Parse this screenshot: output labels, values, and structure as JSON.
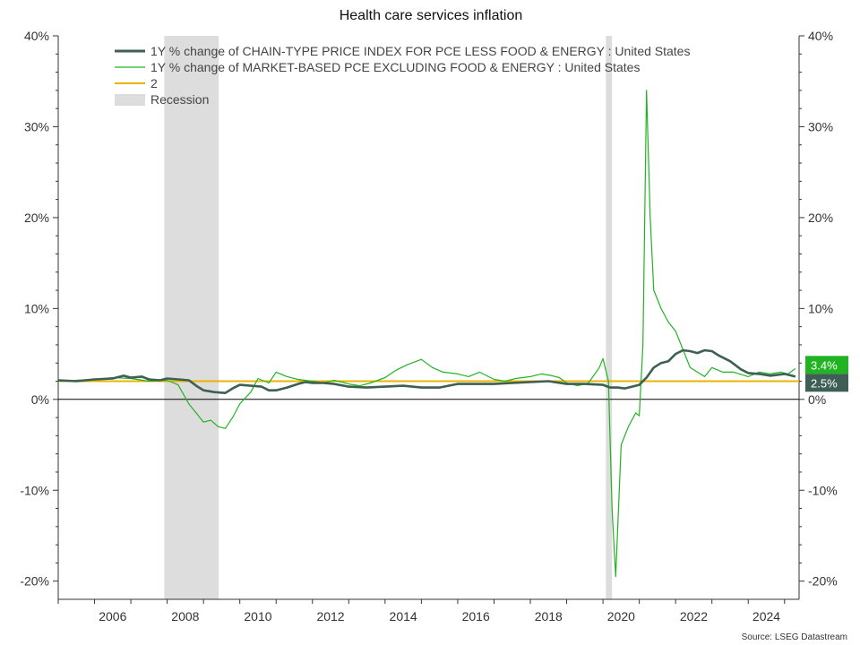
{
  "chart_data": {
    "type": "line",
    "title": "Health care services inflation",
    "source": "Source: LSEG Datastream",
    "xlim": [
      2005.0,
      2025.4
    ],
    "ylim": [
      -22,
      40
    ],
    "y_ticks": [
      -20,
      -10,
      0,
      10,
      20,
      30,
      40
    ],
    "y_tick_labels": [
      "-20%",
      "-10%",
      "0%",
      "10%",
      "20%",
      "30%",
      "40%"
    ],
    "x_ticks": [
      2006,
      2008,
      2010,
      2012,
      2014,
      2016,
      2018,
      2020,
      2022,
      2024
    ],
    "x_tick_labels": [
      "2006",
      "2008",
      "2010",
      "2012",
      "2014",
      "2016",
      "2018",
      "2020",
      "2022",
      "2024"
    ],
    "legend_position": "top-left",
    "recession_label": "Recession",
    "recessions": [
      [
        2007.92,
        2009.42
      ],
      [
        2020.08,
        2020.25
      ]
    ],
    "reference_line": {
      "name": "2",
      "value": 2,
      "color": "#e8b400"
    },
    "end_labels": [
      {
        "text": "3.4%",
        "value": 3.4,
        "color": "#22b322"
      },
      {
        "text": "2.5%",
        "value": 2.5,
        "color": "#3d5f55"
      }
    ],
    "series": [
      {
        "name": "1Y % change of CHAIN-TYPE PRICE INDEX FOR PCE LESS FOOD & ENERGY : United States",
        "color": "#3d5f55",
        "x": [
          2005.0,
          2005.5,
          2006.0,
          2006.5,
          2006.8,
          2007.0,
          2007.3,
          2007.5,
          2007.8,
          2008.0,
          2008.3,
          2008.6,
          2008.8,
          2009.0,
          2009.3,
          2009.6,
          2009.8,
          2010.0,
          2010.3,
          2010.6,
          2010.8,
          2011.0,
          2011.3,
          2011.6,
          2011.8,
          2012.0,
          2012.3,
          2012.6,
          2013.0,
          2013.5,
          2014.0,
          2014.5,
          2015.0,
          2015.5,
          2016.0,
          2016.5,
          2017.0,
          2017.5,
          2018.0,
          2018.5,
          2019.0,
          2019.5,
          2020.0,
          2020.2,
          2020.4,
          2020.6,
          2020.8,
          2021.0,
          2021.2,
          2021.4,
          2021.6,
          2021.8,
          2022.0,
          2022.2,
          2022.4,
          2022.6,
          2022.8,
          2023.0,
          2023.2,
          2023.5,
          2023.8,
          2024.0,
          2024.3,
          2024.6,
          2024.8,
          2025.0,
          2025.2,
          2025.3
        ],
        "values": [
          2.1,
          2.0,
          2.2,
          2.3,
          2.6,
          2.4,
          2.5,
          2.2,
          2.1,
          2.3,
          2.2,
          2.1,
          1.5,
          1.0,
          0.8,
          0.7,
          1.2,
          1.6,
          1.5,
          1.4,
          1.0,
          1.0,
          1.3,
          1.7,
          1.9,
          1.8,
          1.8,
          1.7,
          1.4,
          1.3,
          1.4,
          1.5,
          1.3,
          1.3,
          1.7,
          1.7,
          1.7,
          1.8,
          1.9,
          2.0,
          1.7,
          1.7,
          1.6,
          1.3,
          1.3,
          1.2,
          1.4,
          1.6,
          2.4,
          3.5,
          4.0,
          4.2,
          5.0,
          5.4,
          5.3,
          5.1,
          5.4,
          5.3,
          4.8,
          4.2,
          3.3,
          2.9,
          2.8,
          2.6,
          2.7,
          2.8,
          2.6,
          2.5
        ]
      },
      {
        "name": "1Y % change of MARKET-BASED PCE EXCLUDING FOOD & ENERGY : United States",
        "color": "#22b322",
        "x": [
          2005.0,
          2005.5,
          2006.0,
          2006.5,
          2007.0,
          2007.5,
          2008.0,
          2008.3,
          2008.6,
          2008.8,
          2009.0,
          2009.2,
          2009.4,
          2009.6,
          2009.8,
          2010.0,
          2010.3,
          2010.5,
          2010.8,
          2011.0,
          2011.3,
          2011.6,
          2012.0,
          2012.3,
          2012.6,
          2013.0,
          2013.3,
          2013.6,
          2014.0,
          2014.3,
          2014.6,
          2015.0,
          2015.3,
          2015.6,
          2016.0,
          2016.3,
          2016.6,
          2017.0,
          2017.3,
          2017.6,
          2018.0,
          2018.3,
          2018.6,
          2018.8,
          2019.0,
          2019.3,
          2019.6,
          2019.9,
          2020.0,
          2020.15,
          2020.25,
          2020.35,
          2020.5,
          2020.7,
          2020.9,
          2021.0,
          2021.1,
          2021.2,
          2021.3,
          2021.4,
          2021.6,
          2021.8,
          2022.0,
          2022.2,
          2022.4,
          2022.6,
          2022.8,
          2023.0,
          2023.3,
          2023.6,
          2024.0,
          2024.3,
          2024.6,
          2024.9,
          2025.1,
          2025.3
        ],
        "values": [
          2.0,
          2.1,
          2.2,
          2.4,
          2.3,
          2.0,
          2.1,
          1.6,
          -0.5,
          -1.5,
          -2.5,
          -2.3,
          -3.0,
          -3.2,
          -2.0,
          -0.5,
          0.8,
          2.3,
          1.8,
          3.0,
          2.5,
          2.2,
          2.0,
          1.8,
          2.1,
          1.7,
          1.5,
          1.8,
          2.4,
          3.2,
          3.8,
          4.4,
          3.5,
          3.0,
          2.8,
          2.5,
          3.0,
          2.2,
          2.0,
          2.3,
          2.5,
          2.8,
          2.6,
          2.4,
          1.8,
          1.5,
          1.8,
          3.5,
          4.5,
          2.0,
          -12.0,
          -19.5,
          -5.0,
          -3.0,
          -1.5,
          -1.8,
          6.0,
          34.0,
          20.0,
          12.0,
          10.0,
          8.5,
          7.5,
          5.5,
          3.5,
          3.0,
          2.5,
          3.5,
          3.0,
          3.0,
          2.5,
          3.0,
          2.8,
          3.0,
          2.8,
          3.4
        ]
      }
    ]
  }
}
